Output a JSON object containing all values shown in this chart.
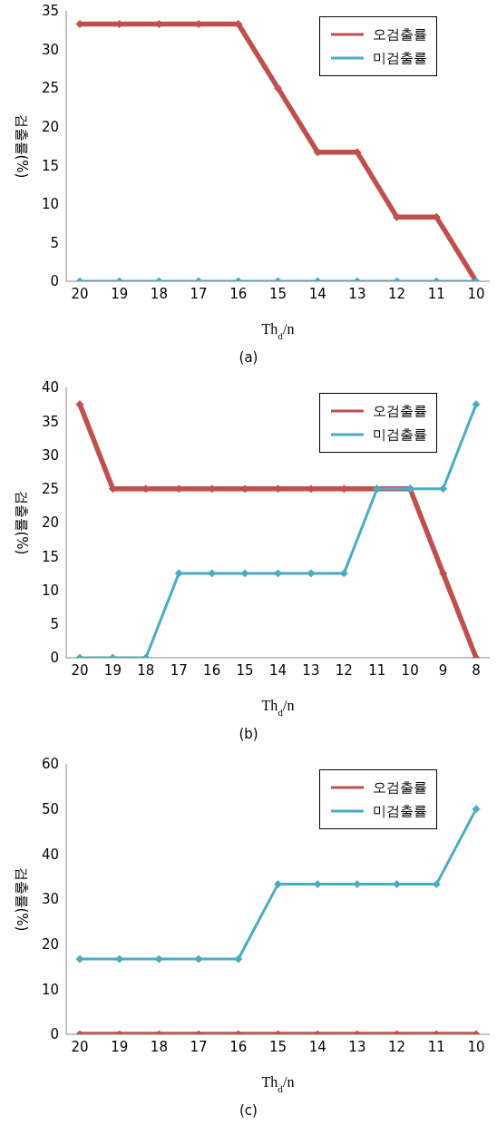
{
  "chart_data": [
    {
      "type": "line",
      "title": "(a)",
      "xlabel": "Th$_{d}$/n",
      "ylabel": "검출률(%)",
      "categories": [
        "20",
        "19",
        "18",
        "17",
        "16",
        "15",
        "14",
        "13",
        "12",
        "11",
        "10"
      ],
      "series": [
        {
          "name": "오검출률",
          "color": "#c0504d",
          "values": [
            33.3,
            33.3,
            33.3,
            33.3,
            33.3,
            25,
            16.7,
            16.7,
            8.3,
            8.3,
            0
          ]
        },
        {
          "name": "미검출률",
          "color": "#4bacc6",
          "values": [
            0,
            0,
            0,
            0,
            0,
            0,
            0,
            0,
            0,
            0,
            0
          ]
        }
      ],
      "ylim": [
        0,
        35
      ],
      "yticks": [
        0,
        5,
        10,
        15,
        20,
        25,
        30,
        35
      ],
      "legend": "top right",
      "marker": "diamond",
      "line_style": "solid"
    },
    {
      "type": "line",
      "title": "(b)",
      "xlabel": "Th$_{d}$/n",
      "ylabel": "검출률(%)",
      "categories": [
        "20",
        "19",
        "18",
        "17",
        "16",
        "15",
        "14",
        "13",
        "12",
        "11",
        "10",
        "9",
        "8"
      ],
      "series": [
        {
          "name": "오검출률",
          "color": "#c0504d",
          "values": [
            37.5,
            25,
            25,
            25,
            25,
            25,
            25,
            25,
            25,
            25,
            25,
            12.5,
            0
          ]
        },
        {
          "name": "미검출률",
          "color": "#4bacc6",
          "values": [
            0,
            0,
            0,
            12.5,
            12.5,
            12.5,
            12.5,
            12.5,
            12.5,
            25,
            25,
            25,
            37.5
          ]
        }
      ],
      "ylim": [
        0,
        40
      ],
      "yticks": [
        0,
        5,
        10,
        15,
        20,
        25,
        30,
        35,
        40
      ],
      "legend": "top right",
      "marker": "diamond",
      "line_style": "solid"
    },
    {
      "type": "line",
      "title": "(c)",
      "xlabel": "Th$_{d}$/n",
      "ylabel": "검출률(%)",
      "categories": [
        "20",
        "19",
        "18",
        "17",
        "16",
        "15",
        "14",
        "13",
        "12",
        "11",
        "10"
      ],
      "series": [
        {
          "name": "오검출률",
          "color": "#c0504d",
          "values": [
            0,
            0,
            0,
            0,
            0,
            0,
            0,
            0,
            0,
            0,
            0
          ]
        },
        {
          "name": "미검출률",
          "color": "#4bacc6",
          "values": [
            16.7,
            16.7,
            16.7,
            16.7,
            16.7,
            33.3,
            33.3,
            33.3,
            33.3,
            33.3,
            50
          ]
        }
      ],
      "ylim": [
        0,
        60
      ],
      "yticks": [
        0,
        10,
        20,
        30,
        40,
        50,
        60
      ],
      "legend": "top right",
      "marker": "diamond",
      "line_style": "solid"
    }
  ]
}
